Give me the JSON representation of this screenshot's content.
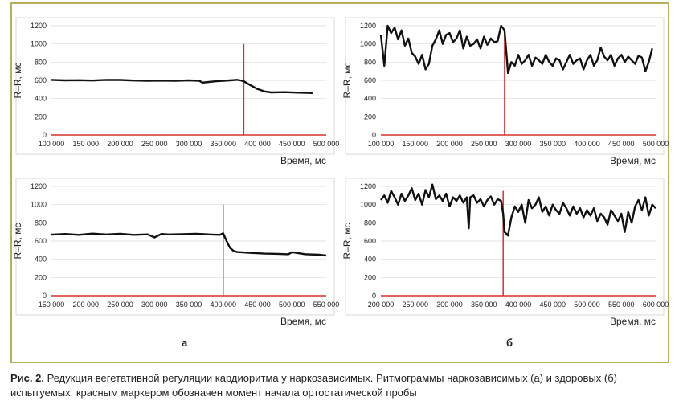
{
  "figure": {
    "label_a": "а",
    "label_b": "б",
    "frame_color": "#b5b05c",
    "marker_color": "#d9302a",
    "line_color": "#111111"
  },
  "caption": {
    "fig_label": "Рис. 2.",
    "text": "Редукция вегетативной регуляции кардиоритма у наркозависимых. Ритмограммы наркозависимых (а) и здоровых (б) испытуемых; красным маркером обозначен момент начала ортостатической пробы"
  },
  "chart_data": [
    {
      "type": "line",
      "group": "а",
      "xlabel": "Время, мс",
      "ylabel": "R–R, мс",
      "xlim": [
        100000,
        500000
      ],
      "ylim": [
        0,
        1200
      ],
      "x_ticks": [
        "100 000",
        "150 000",
        "200 000",
        "250 000",
        "300 000",
        "350 000",
        "400 000",
        "450 000",
        "500 000"
      ],
      "y_ticks": [
        "0",
        "200",
        "400",
        "600",
        "800",
        "1000",
        "1200"
      ],
      "marker_x": 380000,
      "marker_height": 1000,
      "series": [
        {
          "x": [
            100000,
            120000,
            140000,
            160000,
            180000,
            200000,
            220000,
            240000,
            260000,
            280000,
            300000,
            315000,
            320000,
            340000,
            360000,
            370000,
            375000,
            380000,
            390000,
            400000,
            410000,
            420000,
            440000,
            460000,
            475000,
            480000
          ],
          "y": [
            605,
            600,
            602,
            598,
            605,
            604,
            598,
            595,
            597,
            595,
            600,
            596,
            575,
            590,
            600,
            606,
            600,
            590,
            545,
            505,
            478,
            468,
            470,
            465,
            462,
            460
          ]
        }
      ]
    },
    {
      "type": "line",
      "group": "а",
      "xlabel": "Время, мс",
      "ylabel": "R–R, мс",
      "xlim": [
        150000,
        550000
      ],
      "ylim": [
        0,
        1200
      ],
      "x_ticks": [
        "150 000",
        "200 000",
        "250 000",
        "300 000",
        "350 000",
        "400 000",
        "450 000",
        "500 000",
        "550 000"
      ],
      "y_ticks": [
        "0",
        "200",
        "400",
        "600",
        "800",
        "1000",
        "1200"
      ],
      "marker_x": 400000,
      "marker_height": 1000,
      "series": [
        {
          "x": [
            150000,
            170000,
            190000,
            210000,
            230000,
            250000,
            270000,
            290000,
            300000,
            310000,
            320000,
            340000,
            360000,
            380000,
            395000,
            400000,
            405000,
            410000,
            415000,
            420000,
            440000,
            460000,
            480000,
            495000,
            500000,
            520000,
            540000,
            550000
          ],
          "y": [
            670,
            678,
            668,
            682,
            672,
            680,
            668,
            673,
            640,
            678,
            672,
            676,
            680,
            672,
            668,
            685,
            600,
            525,
            492,
            480,
            470,
            462,
            460,
            455,
            478,
            455,
            450,
            440
          ]
        }
      ]
    },
    {
      "type": "line",
      "group": "б",
      "xlabel": "Время, мс",
      "ylabel": "R–R, мс",
      "xlim": [
        100000,
        500000
      ],
      "ylim": [
        0,
        1200
      ],
      "x_ticks": [
        "100 000",
        "150 000",
        "200 000",
        "250 000",
        "300 000",
        "350 000",
        "400 000",
        "450 000",
        "500 000"
      ],
      "y_ticks": [
        "0",
        "200",
        "400",
        "600",
        "800",
        "1000",
        "1200"
      ],
      "marker_x": 280000,
      "marker_height": 1150,
      "series": [
        {
          "x": [
            100000,
            105000,
            110000,
            115000,
            120000,
            125000,
            130000,
            135000,
            140000,
            145000,
            150000,
            155000,
            160000,
            165000,
            170000,
            175000,
            180000,
            185000,
            190000,
            195000,
            200000,
            205000,
            210000,
            215000,
            220000,
            225000,
            230000,
            235000,
            240000,
            245000,
            250000,
            255000,
            260000,
            265000,
            270000,
            275000,
            280000,
            285000,
            290000,
            295000,
            300000,
            305000,
            310000,
            315000,
            320000,
            325000,
            330000,
            335000,
            340000,
            345000,
            350000,
            355000,
            360000,
            365000,
            370000,
            375000,
            380000,
            385000,
            390000,
            395000,
            400000,
            405000,
            410000,
            415000,
            420000,
            425000,
            430000,
            435000,
            440000,
            445000,
            450000,
            455000,
            460000,
            465000,
            470000,
            475000,
            480000,
            485000,
            490000,
            495000
          ],
          "y": [
            1100,
            760,
            1200,
            1120,
            1180,
            1050,
            1150,
            980,
            1060,
            900,
            860,
            780,
            880,
            720,
            780,
            980,
            1050,
            1150,
            1000,
            1100,
            1120,
            1020,
            1060,
            1150,
            950,
            1080,
            980,
            1000,
            1050,
            950,
            1080,
            990,
            1060,
            1020,
            1030,
            1200,
            1150,
            680,
            800,
            760,
            880,
            780,
            820,
            880,
            760,
            850,
            820,
            780,
            880,
            800,
            760,
            840,
            820,
            720,
            800,
            880,
            780,
            820,
            840,
            720,
            820,
            880,
            760,
            820,
            960,
            860,
            820,
            880,
            760,
            840,
            880,
            800,
            860,
            820,
            780,
            870,
            850,
            700,
            800,
            950
          ]
        }
      ]
    },
    {
      "type": "line",
      "group": "б",
      "xlabel": "Время, мс",
      "ylabel": "R–R, мс",
      "xlim": [
        200000,
        600000
      ],
      "ylim": [
        0,
        1200
      ],
      "x_ticks": [
        "200 000",
        "250 000",
        "300 000",
        "350 000",
        "400 000",
        "450 000",
        "500 000",
        "550 000",
        "600 000"
      ],
      "y_ticks": [
        "0",
        "200",
        "400",
        "600",
        "800",
        "1000",
        "1200"
      ],
      "marker_x": 378000,
      "marker_height": 1150,
      "series": [
        {
          "x": [
            200000,
            205000,
            210000,
            215000,
            220000,
            225000,
            230000,
            235000,
            240000,
            245000,
            250000,
            255000,
            260000,
            265000,
            270000,
            275000,
            280000,
            285000,
            290000,
            295000,
            300000,
            305000,
            310000,
            315000,
            320000,
            325000,
            328000,
            330000,
            335000,
            340000,
            345000,
            350000,
            355000,
            360000,
            365000,
            370000,
            375000,
            378000,
            380000,
            385000,
            390000,
            395000,
            400000,
            405000,
            410000,
            415000,
            420000,
            425000,
            430000,
            435000,
            440000,
            445000,
            450000,
            455000,
            460000,
            465000,
            470000,
            475000,
            480000,
            485000,
            490000,
            495000,
            500000,
            505000,
            510000,
            515000,
            520000,
            525000,
            530000,
            535000,
            540000,
            545000,
            550000,
            555000,
            560000,
            565000,
            570000,
            575000,
            580000,
            585000,
            590000,
            595000,
            600000
          ],
          "y": [
            1050,
            1100,
            1020,
            1150,
            1080,
            1000,
            1120,
            1040,
            1100,
            1180,
            1050,
            1120,
            1000,
            1160,
            1080,
            1220,
            1060,
            1100,
            1040,
            1120,
            980,
            1080,
            1040,
            1100,
            1020,
            1080,
            740,
            1080,
            1100,
            1020,
            1060,
            980,
            1050,
            1090,
            1000,
            1060,
            1040,
            900,
            700,
            660,
            860,
            980,
            920,
            1000,
            800,
            1050,
            960,
            1000,
            1080,
            920,
            980,
            880,
            1000,
            940,
            900,
            1020,
            960,
            880,
            980,
            900,
            960,
            860,
            940,
            880,
            960,
            820,
            900,
            860,
            780,
            940,
            880,
            820,
            900,
            700,
            920,
            800,
            980,
            1050,
            940,
            1080,
            880,
            1000,
            960
          ]
        }
      ]
    }
  ]
}
